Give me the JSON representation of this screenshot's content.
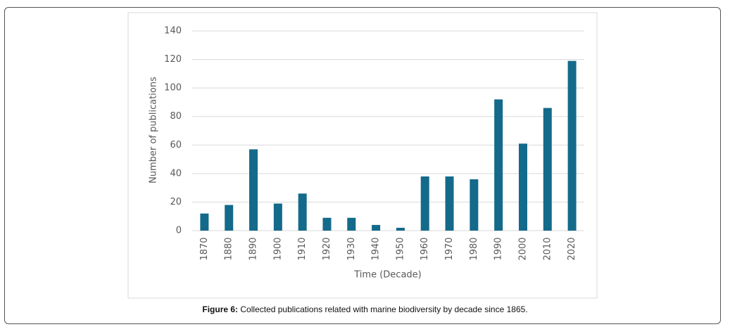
{
  "chart_data": {
    "type": "bar",
    "x_label": "Time (Decade)",
    "y_label": "Number of publications",
    "categories": [
      "1870",
      "1880",
      "1890",
      "1900",
      "1910",
      "1920",
      "1930",
      "1940",
      "1950",
      "1960",
      "1970",
      "1980",
      "1990",
      "2000",
      "2010",
      "2020"
    ],
    "values": [
      12,
      18,
      57,
      19,
      26,
      9,
      9,
      4,
      2,
      38,
      38,
      36,
      92,
      61,
      86,
      119
    ],
    "color": "#146a8a",
    "ylim": [
      0,
      140
    ],
    "yticks": [
      0,
      20,
      40,
      60,
      80,
      100,
      120,
      140
    ],
    "grid": true
  },
  "caption": {
    "label": "Figure 6:",
    "text": "Collected publications related with marine biodiversity by decade since 1865."
  }
}
